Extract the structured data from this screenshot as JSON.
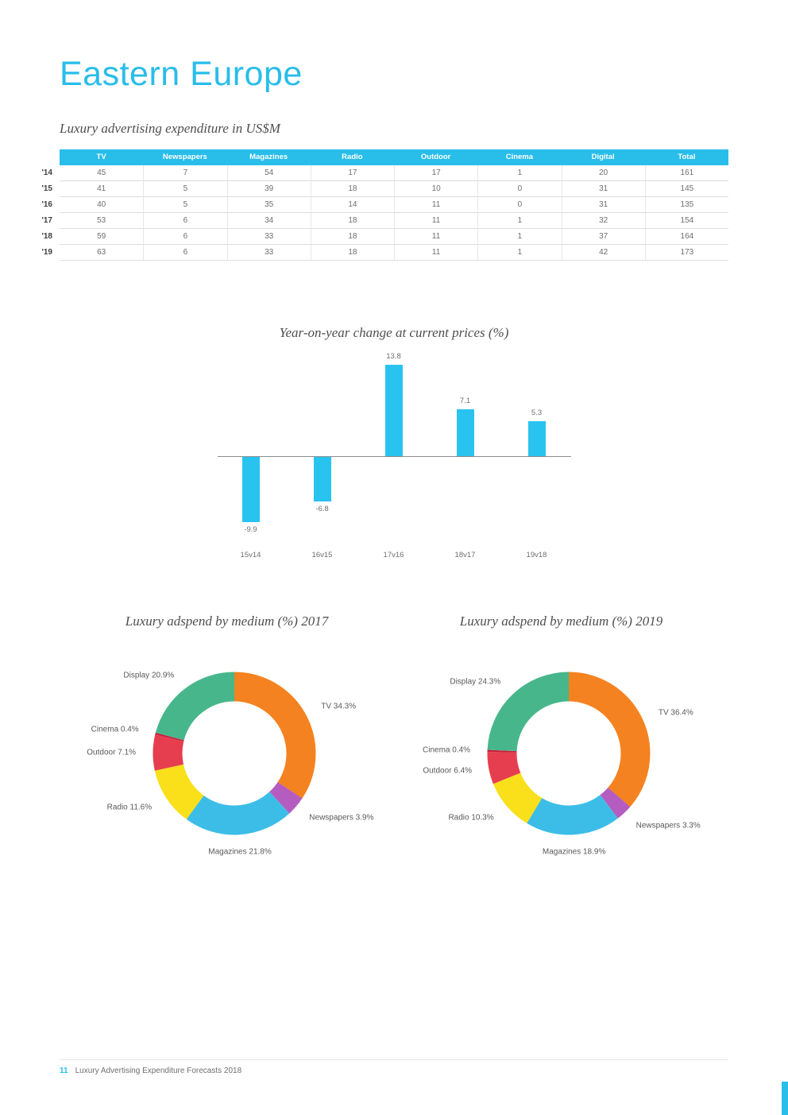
{
  "page": {
    "title": "Eastern Europe",
    "accent_color": "#29bdea",
    "footer": {
      "page_number": "11",
      "text": "Luxury Advertising Expenditure Forecasts 2018"
    }
  },
  "chart_data": [
    {
      "type": "table",
      "title": "Luxury advertising expenditure in US$M",
      "columns": [
        "TV",
        "Newspapers",
        "Magazines",
        "Radio",
        "Outdoor",
        "Cinema",
        "Digital",
        "Total"
      ],
      "row_labels": [
        "'14",
        "'15",
        "'16",
        "'17",
        "'18",
        "'19"
      ],
      "rows": [
        [
          45,
          7,
          54,
          17,
          17,
          1,
          20,
          161
        ],
        [
          41,
          5,
          39,
          18,
          10,
          0,
          31,
          145
        ],
        [
          40,
          5,
          35,
          14,
          11,
          0,
          31,
          135
        ],
        [
          53,
          6,
          34,
          18,
          11,
          1,
          32,
          154
        ],
        [
          59,
          6,
          33,
          18,
          11,
          1,
          37,
          164
        ],
        [
          63,
          6,
          33,
          18,
          11,
          1,
          42,
          173
        ]
      ],
      "header_bg": "#29bdea"
    },
    {
      "type": "bar",
      "title": "Year-on-year change at current prices (%)",
      "categories": [
        "15v14",
        "16v15",
        "17v16",
        "18v17",
        "19v18"
      ],
      "values": [
        -9.9,
        -6.8,
        13.8,
        7.1,
        5.3
      ],
      "bar_color": "#29c3f0",
      "ylim": [
        -12,
        15
      ],
      "grid": false,
      "legend": false
    },
    {
      "type": "pie",
      "title": "Luxury adspend by medium (%) 2017",
      "donut": true,
      "segments": [
        {
          "name": "TV",
          "value": 34.3,
          "label": "TV 34.3%",
          "color": "#f58220"
        },
        {
          "name": "Newspapers",
          "value": 3.9,
          "label": "Newspapers 3.9%",
          "color": "#b55cc0"
        },
        {
          "name": "Magazines",
          "value": 21.8,
          "label": "Magazines 21.8%",
          "color": "#3cbde8"
        },
        {
          "name": "Radio",
          "value": 11.6,
          "label": "Radio 11.6%",
          "color": "#f9e01a"
        },
        {
          "name": "Outdoor",
          "value": 7.1,
          "label": "Outdoor 7.1%",
          "color": "#e63e4e"
        },
        {
          "name": "Cinema",
          "value": 0.4,
          "label": "Cinema 0.4%",
          "color": "#c6203c"
        },
        {
          "name": "Display",
          "value": 20.9,
          "label": "Display 20.9%",
          "color": "#47b78b"
        }
      ]
    },
    {
      "type": "pie",
      "title": "Luxury adspend by medium (%) 2019",
      "donut": true,
      "segments": [
        {
          "name": "TV",
          "value": 36.4,
          "label": "TV 36.4%",
          "color": "#f58220"
        },
        {
          "name": "Newspapers",
          "value": 3.3,
          "label": "Newspapers 3.3%",
          "color": "#b55cc0"
        },
        {
          "name": "Magazines",
          "value": 18.9,
          "label": "Magazines 18.9%",
          "color": "#3cbde8"
        },
        {
          "name": "Radio",
          "value": 10.3,
          "label": "Radio 10.3%",
          "color": "#f9e01a"
        },
        {
          "name": "Outdoor",
          "value": 6.4,
          "label": "Outdoor 6.4%",
          "color": "#e63e4e"
        },
        {
          "name": "Cinema",
          "value": 0.4,
          "label": "Cinema 0.4%",
          "color": "#c6203c"
        },
        {
          "name": "Display",
          "value": 24.3,
          "label": "Display 24.3%",
          "color": "#47b78b"
        }
      ]
    }
  ]
}
